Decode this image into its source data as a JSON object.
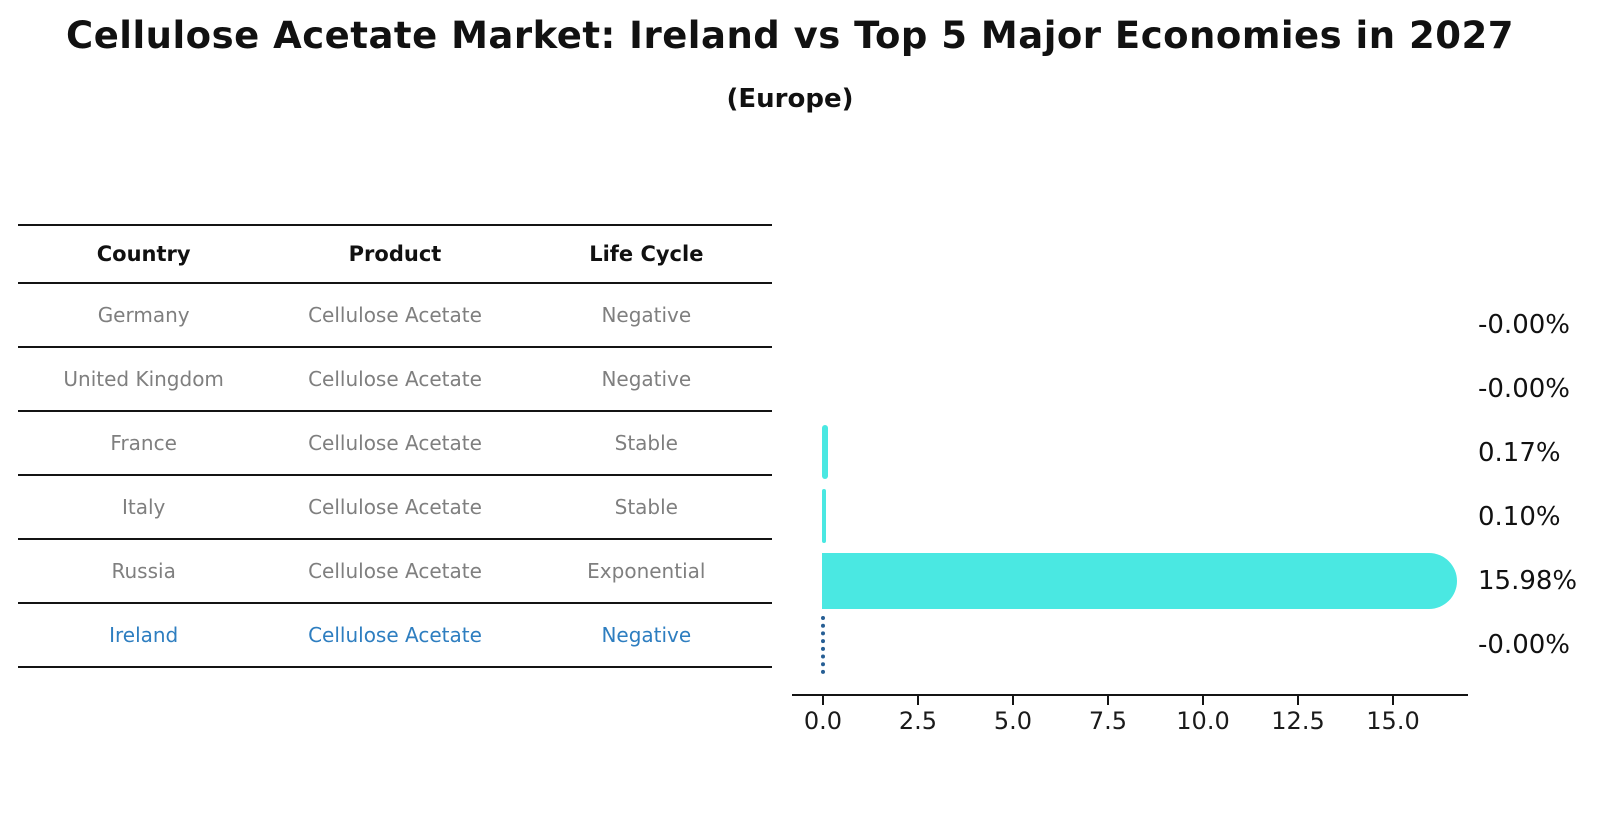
{
  "title": "Cellulose Acetate Market: Ireland vs Top 5 Major Economies in 2027",
  "subtitle": "(Europe)",
  "table": {
    "headers": [
      "Country",
      "Product",
      "Life Cycle"
    ],
    "rows": [
      {
        "country": "Germany",
        "product": "Cellulose Acetate",
        "life_cycle": "Negative",
        "highlighted": false
      },
      {
        "country": "United Kingdom",
        "product": "Cellulose Acetate",
        "life_cycle": "Negative",
        "highlighted": false
      },
      {
        "country": "France",
        "product": "Cellulose Acetate",
        "life_cycle": "Stable",
        "highlighted": false
      },
      {
        "country": "Italy",
        "product": "Cellulose Acetate",
        "life_cycle": "Stable",
        "highlighted": false
      },
      {
        "country": "Russia",
        "product": "Cellulose Acetate",
        "life_cycle": "Exponential",
        "highlighted": false
      },
      {
        "country": "Ireland",
        "product": "Cellulose Acetate",
        "life_cycle": "Negative",
        "highlighted": true
      }
    ]
  },
  "chart_data": {
    "type": "bar",
    "orientation": "horizontal",
    "title": "Cellulose Acetate Market: Ireland vs Top 5 Major Economies in 2027",
    "subtitle": "(Europe)",
    "categories": [
      "Germany",
      "United Kingdom",
      "France",
      "Italy",
      "Russia",
      "Ireland"
    ],
    "values": [
      -0.0,
      -0.0,
      0.17,
      0.1,
      15.98,
      -0.0
    ],
    "value_labels": [
      "-0.00%",
      "-0.00%",
      "0.17%",
      "0.10%",
      "15.98%",
      "-0.00%"
    ],
    "xlabel": "",
    "ylabel": "",
    "x_ticks": [
      "0.0",
      "2.5",
      "5.0",
      "7.5",
      "10.0",
      "12.5",
      "15.0"
    ],
    "xlim": [
      -0.8,
      17.0
    ],
    "grid": false,
    "legend": "none",
    "highlight_index": 5,
    "highlight_style": "dotted-outline-zero-bar"
  },
  "colors": {
    "bar": "#4AE8E2",
    "highlight_text": "#2E7EC0",
    "highlight_outline": "#265E94",
    "table_text": "#7f7f7f",
    "axis": "#141414"
  }
}
